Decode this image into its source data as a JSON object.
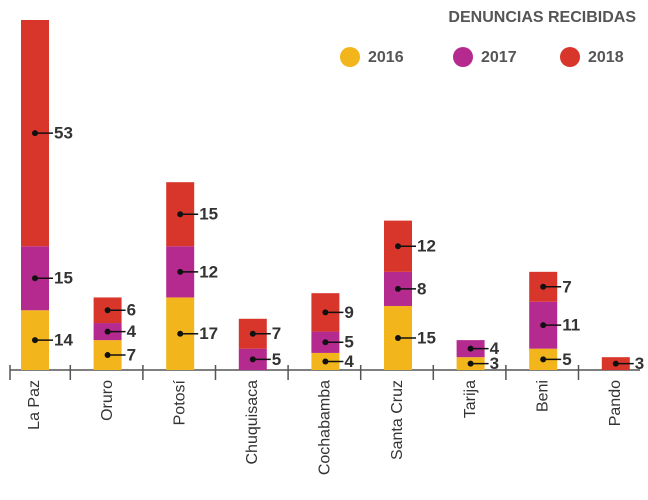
{
  "chart_data": {
    "type": "stacked_bar",
    "title": "DENUNCIAS RECIBIDAS",
    "categories": [
      "La Paz",
      "Oruro",
      "Potosí",
      "Chuquisaca",
      "Cochabamba",
      "Santa Cruz",
      "Tarija",
      "Beni",
      "Pando"
    ],
    "series": [
      {
        "name": "2016",
        "color": "#f2b51c",
        "values": [
          14,
          7,
          17,
          null,
          4,
          15,
          3,
          5,
          null
        ]
      },
      {
        "name": "2017",
        "color": "#b52a8e",
        "values": [
          15,
          4,
          12,
          5,
          5,
          8,
          4,
          11,
          null
        ]
      },
      {
        "name": "2018",
        "color": "#d8362a",
        "values": [
          53,
          6,
          15,
          7,
          9,
          12,
          null,
          7,
          3
        ]
      }
    ],
    "legend": "upper right"
  }
}
